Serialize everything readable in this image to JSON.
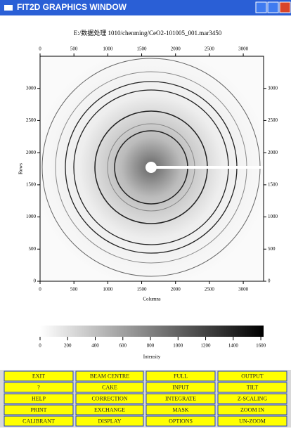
{
  "window": {
    "title": "FIT2D GRAPHICS WINDOW"
  },
  "chart_data": {
    "type": "image",
    "title": "E:/数据处理 1010/chenming/CeO2-101005_001.mar3450",
    "x_label": "Columns",
    "y_label": "Rows",
    "xlim": [
      0,
      3300
    ],
    "ylim": [
      0,
      3500
    ],
    "xticks": [
      0,
      500,
      1000,
      1500,
      2000,
      2500,
      3000
    ],
    "yticks": [
      0,
      500,
      1000,
      1500,
      2000,
      2500,
      3000
    ],
    "colorbar": {
      "label": "Intensity",
      "lim": [
        0,
        1620
      ],
      "ticks": [
        0,
        200,
        400,
        600,
        800,
        1000,
        1200,
        1400,
        1600
      ]
    }
  },
  "buttons": [
    [
      "EXIT",
      "BEAM CENTRE",
      "FULL",
      "OUTPUT"
    ],
    [
      "?",
      "CAKE",
      "INPUT",
      "TILT"
    ],
    [
      "HELP",
      "CORRECTION",
      "INTEGRATE",
      "Z-SCALING"
    ],
    [
      "PRINT",
      "EXCHANGE",
      "MASK",
      "ZOOM IN"
    ],
    [
      "CALIBRANT",
      "DISPLAY",
      "OPTIONS",
      "UN-ZOOM"
    ]
  ]
}
